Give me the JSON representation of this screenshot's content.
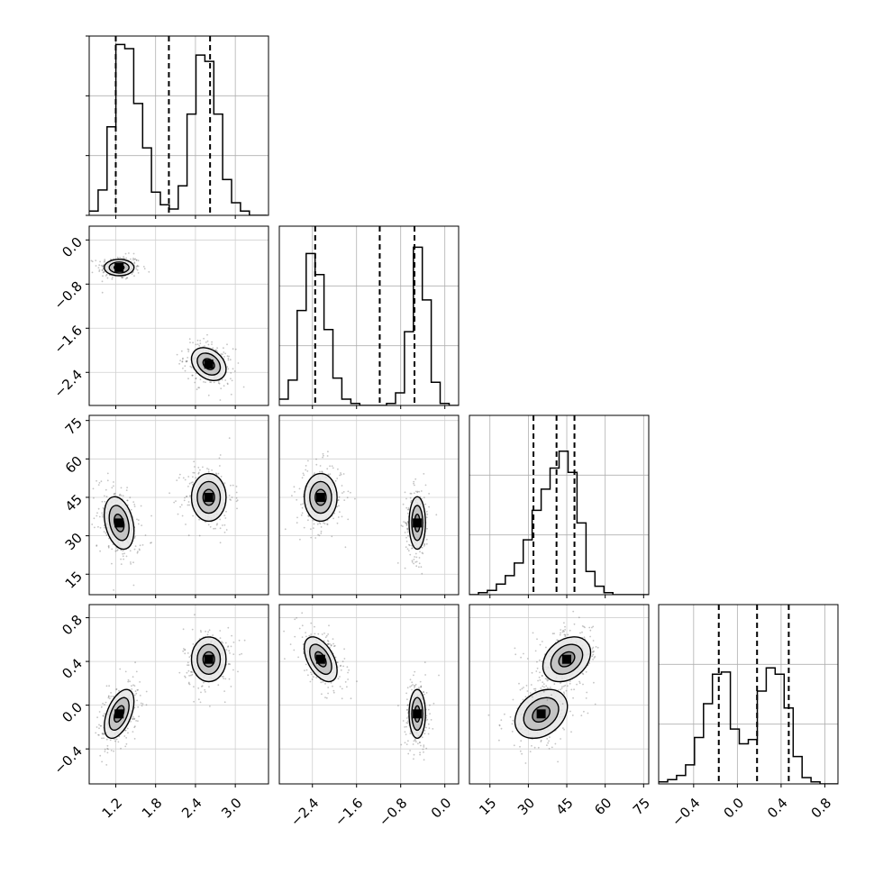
{
  "chart_data": {
    "type": "corner",
    "parameters": [
      {
        "range": [
          0.8,
          3.5
        ],
        "ticks": [
          1.2,
          1.8,
          2.4,
          3.0
        ],
        "tick_labels": [
          "1.2",
          "1.8",
          "2.4",
          "3.0"
        ]
      },
      {
        "range": [
          -3.0,
          0.25
        ],
        "ticks": [
          -2.4,
          -1.6,
          -0.8,
          0.0
        ],
        "tick_labels": [
          "−2.4",
          "−1.6",
          "−0.8",
          "0.0"
        ]
      },
      {
        "range": [
          7,
          77
        ],
        "ticks": [
          15,
          30,
          45,
          60,
          75
        ],
        "tick_labels": [
          "15",
          "30",
          "45",
          "60",
          "75"
        ]
      },
      {
        "range": [
          -0.72,
          0.92
        ],
        "ticks": [
          -0.4,
          0.0,
          0.4,
          0.8
        ],
        "tick_labels": [
          "−0.4",
          "0.0",
          "0.4",
          "0.8"
        ]
      }
    ],
    "quantiles": [
      [
        1.2,
        2.0,
        2.62
      ],
      [
        -2.35,
        -1.18,
        -0.55
      ],
      [
        32,
        41,
        48
      ],
      [
        -0.17,
        0.18,
        0.47
      ]
    ],
    "histograms": [
      {
        "bin_edges": [
          0.8,
          0.934,
          1.068,
          1.202,
          1.336,
          1.47,
          1.604,
          1.738,
          1.872,
          2.006,
          2.14,
          2.274,
          2.408,
          2.542,
          2.676,
          2.81,
          2.944,
          3.078,
          3.212,
          3.346,
          3.48
        ],
        "counts": [
          2,
          12,
          42,
          81,
          79,
          53,
          32,
          11,
          5,
          3,
          14,
          48,
          76,
          73,
          48,
          17,
          6,
          2,
          0,
          0
        ]
      },
      {
        "bin_edges": [
          -3.0,
          -2.838,
          -2.676,
          -2.514,
          -2.352,
          -2.19,
          -2.028,
          -1.866,
          -1.704,
          -1.542,
          -1.38,
          -1.218,
          -1.056,
          -0.894,
          -0.732,
          -0.57,
          -0.408,
          -0.246,
          -0.084,
          0.078,
          0.24
        ],
        "counts": [
          3,
          12,
          45,
          72,
          62,
          36,
          13,
          3,
          1,
          0,
          0,
          0,
          1,
          6,
          35,
          75,
          50,
          11,
          1,
          0
        ]
      },
      {
        "bin_edges": [
          7,
          10.5,
          14,
          17.5,
          21,
          24.5,
          28,
          31.5,
          35,
          38.5,
          42,
          45.5,
          49,
          52.5,
          56,
          59.5,
          63,
          66.5,
          70,
          73.5,
          77
        ],
        "counts": [
          0,
          1,
          2,
          5,
          9,
          15,
          26,
          40,
          50,
          60,
          68,
          58,
          34,
          11,
          4,
          1,
          0,
          0,
          0,
          0
        ]
      },
      {
        "bin_edges": [
          -0.72,
          -0.638,
          -0.556,
          -0.474,
          -0.392,
          -0.31,
          -0.228,
          -0.146,
          -0.064,
          0.018,
          0.1,
          0.182,
          0.264,
          0.346,
          0.428,
          0.51,
          0.592,
          0.674,
          0.756,
          0.838,
          0.92
        ],
        "counts": [
          1,
          2,
          4,
          9,
          22,
          38,
          52,
          53,
          26,
          19,
          21,
          44,
          55,
          52,
          36,
          13,
          3,
          1,
          0,
          0
        ]
      }
    ],
    "histogram_ylim": [
      0,
      85
    ],
    "clusters": [
      {
        "means": [
          1.25,
          -0.5,
          35,
          -0.08
        ],
        "sds": [
          0.12,
          0.08,
          5.5,
          0.12
        ],
        "weight": 0.5
      },
      {
        "means": [
          2.6,
          -2.25,
          45,
          0.42
        ],
        "sds": [
          0.14,
          0.16,
          5.0,
          0.11
        ],
        "weight": 0.5
      }
    ],
    "pair_correlations": {
      "0-1": [
        0.0,
        -0.3
      ],
      "0-2": [
        -0.3,
        0.0
      ],
      "0-3": [
        0.5,
        0.0
      ],
      "1-2": [
        0.0,
        0.0
      ],
      "1-3": [
        0.0,
        -0.5
      ],
      "2-3": [
        0.3,
        0.3
      ]
    },
    "contour_levels": [
      0.4,
      0.8,
      1.2
    ],
    "grid": true,
    "title": "",
    "legend": "none"
  }
}
